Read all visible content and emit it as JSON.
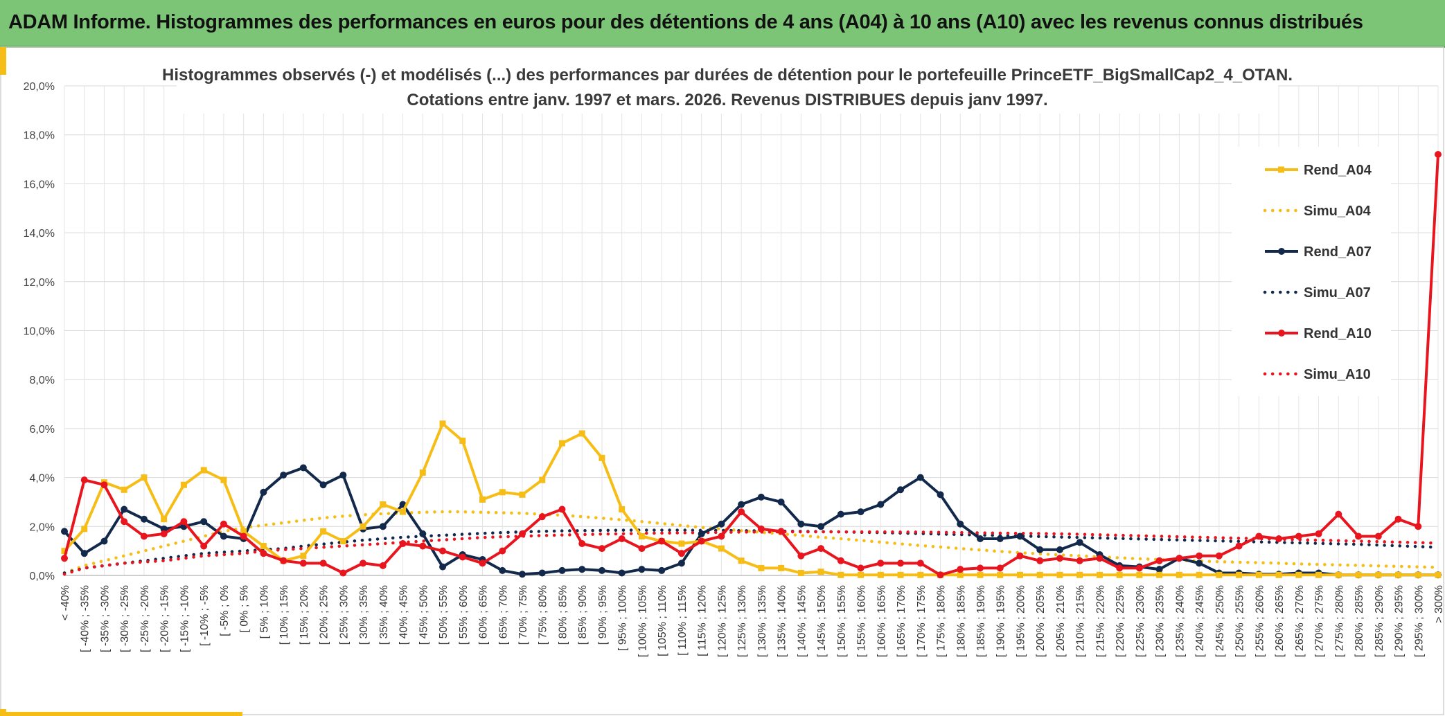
{
  "banner": {
    "title": "ADAM Informe. Histogrammes des performances en euros pour des détentions de 4 ans (A04) à 10 ans (A10) avec les revenus connus distribués"
  },
  "colors": {
    "A04": "#f6bd16",
    "A07": "#13294b",
    "A10": "#e8141e",
    "banner": "#7cc576",
    "accent_bar": "#f6bd16"
  },
  "chart_data": {
    "type": "line",
    "title_line1": "Histogrammes observés (-) et modélisés (...) des performances par durées de détention pour le portefeuille PrinceETF_BigSmallCap2_4_OTAN.",
    "title_line2": "Cotations entre janv. 1997 et mars. 2026. Revenus DISTRIBUES depuis janv 1997.",
    "ylim": [
      0,
      20
    ],
    "yticks": [
      "0,0%",
      "2,0%",
      "4,0%",
      "6,0%",
      "8,0%",
      "10,0%",
      "12,0%",
      "14,0%",
      "16,0%",
      "18,0%",
      "20,0%"
    ],
    "grid": true,
    "legend_position": "right",
    "categories": [
      "< -40%",
      "[ -40% ; -35%",
      "[ -35% ; -30%",
      "[ -30% ; -25%",
      "[ -25% ; -20%",
      "[ -20% ; -15%",
      "[ -15% ; -10%",
      "[ -10% ; -5%",
      "[ -5% ; 0%",
      "[ 0% ; 5%",
      "[ 5% ; 10%",
      "[ 10% ; 15%",
      "[ 15% ; 20%",
      "[ 20% ; 25%",
      "[ 25% ; 30%",
      "[ 30% ; 35%",
      "[ 35% ; 40%",
      "[ 40% ; 45%",
      "[ 45% ; 50%",
      "[ 50% ; 55%",
      "[ 55% ; 60%",
      "[ 60% ; 65%",
      "[ 65% ; 70%",
      "[ 70% ; 75%",
      "[ 75% ; 80%",
      "[ 80% ; 85%",
      "[ 85% ; 90%",
      "[ 90% ; 95%",
      "[ 95% ; 100%",
      "[ 100% ; 105%",
      "[ 105% ; 110%",
      "[ 110% ; 115%",
      "[ 115% ; 120%",
      "[ 120% ; 125%",
      "[ 125% ; 130%",
      "[ 130% ; 135%",
      "[ 135% ; 140%",
      "[ 140% ; 145%",
      "[ 145% ; 150%",
      "[ 150% ; 155%",
      "[ 155% ; 160%",
      "[ 160% ; 165%",
      "[ 165% ; 170%",
      "[ 170% ; 175%",
      "[ 175% ; 180%",
      "[ 180% ; 185%",
      "[ 185% ; 190%",
      "[ 190% ; 195%",
      "[ 195% ; 200%",
      "[ 200% ; 205%",
      "[ 205% ; 210%",
      "[ 210% ; 215%",
      "[ 215% ; 220%",
      "[ 220% ; 225%",
      "[ 225% ; 230%",
      "[ 230% ; 235%",
      "[ 235% ; 240%",
      "[ 240% ; 245%",
      "[ 245% ; 250%",
      "[ 250% ; 255%",
      "[ 255% ; 260%",
      "[ 260% ; 265%",
      "[ 265% ; 270%",
      "[ 270% ; 275%",
      "[ 275% ; 280%",
      "[ 280% ; 285%",
      "[ 285% ; 290%",
      "[ 290% ; 295%",
      "[ 295% ; 300%",
      "> 300%"
    ],
    "series": [
      {
        "name": "Rend_A04",
        "key": "A04",
        "style": "solid",
        "marker": "square",
        "values": [
          1.0,
          1.9,
          3.8,
          3.5,
          4.0,
          2.3,
          3.7,
          4.3,
          3.9,
          1.8,
          1.2,
          0.6,
          0.8,
          1.8,
          1.4,
          2.0,
          2.9,
          2.6,
          4.2,
          6.2,
          5.5,
          3.1,
          3.4,
          3.3,
          3.9,
          5.4,
          5.8,
          4.8,
          2.7,
          1.6,
          1.4,
          1.3,
          1.4,
          1.1,
          0.6,
          0.3,
          0.3,
          0.1,
          0.15,
          0.02,
          0.02,
          0.02,
          0.02,
          0.02,
          0.02,
          0.02,
          0.02,
          0.02,
          0.02,
          0.02,
          0.02,
          0.02,
          0.02,
          0.02,
          0.02,
          0.02,
          0.02,
          0.02,
          0.02,
          0.02,
          0.02,
          0.02,
          0.02,
          0.02,
          0.02,
          0.02,
          0.02,
          0.02,
          0.02,
          0.02
        ]
      },
      {
        "name": "Simu_A04",
        "key": "A04",
        "style": "dotted",
        "marker": "none",
        "values": [
          0.1,
          0.4,
          0.6,
          0.8,
          1.0,
          1.2,
          1.4,
          1.6,
          1.8,
          1.95,
          2.05,
          2.15,
          2.25,
          2.35,
          2.42,
          2.48,
          2.52,
          2.55,
          2.58,
          2.6,
          2.6,
          2.58,
          2.56,
          2.54,
          2.5,
          2.46,
          2.4,
          2.34,
          2.27,
          2.2,
          2.12,
          2.04,
          1.96,
          1.9,
          1.83,
          1.76,
          1.7,
          1.63,
          1.56,
          1.5,
          1.43,
          1.36,
          1.29,
          1.22,
          1.16,
          1.1,
          1.04,
          0.98,
          0.93,
          0.88,
          0.84,
          0.8,
          0.76,
          0.72,
          0.68,
          0.65,
          0.62,
          0.59,
          0.56,
          0.54,
          0.52,
          0.5,
          0.47,
          0.45,
          0.43,
          0.41,
          0.39,
          0.37,
          0.35,
          0.33
        ]
      },
      {
        "name": "Rend_A07",
        "key": "A07",
        "style": "solid",
        "marker": "circle",
        "values": [
          1.8,
          0.9,
          1.4,
          2.7,
          2.3,
          1.9,
          2.0,
          2.2,
          1.6,
          1.5,
          3.4,
          4.1,
          4.4,
          3.7,
          4.1,
          1.9,
          2.0,
          2.9,
          1.7,
          0.35,
          0.85,
          0.65,
          0.2,
          0.05,
          0.1,
          0.2,
          0.25,
          0.2,
          0.1,
          0.25,
          0.2,
          0.5,
          1.7,
          2.1,
          2.9,
          3.2,
          3.0,
          2.1,
          2.0,
          2.5,
          2.6,
          2.9,
          3.5,
          4.0,
          3.3,
          2.1,
          1.5,
          1.5,
          1.6,
          1.05,
          1.05,
          1.35,
          0.85,
          0.4,
          0.35,
          0.25,
          0.7,
          0.5,
          0.1,
          0.1,
          0.05,
          0.05,
          0.1,
          0.1,
          0.02,
          0.02,
          0.02,
          0.02,
          0.02,
          0.02
        ]
      },
      {
        "name": "Simu_A07",
        "key": "A07",
        "style": "dotted",
        "marker": "none",
        "values": [
          0.1,
          0.3,
          0.4,
          0.5,
          0.6,
          0.7,
          0.8,
          0.9,
          0.95,
          1.0,
          1.05,
          1.1,
          1.2,
          1.28,
          1.36,
          1.44,
          1.5,
          1.56,
          1.6,
          1.64,
          1.68,
          1.72,
          1.75,
          1.78,
          1.8,
          1.82,
          1.83,
          1.84,
          1.85,
          1.85,
          1.85,
          1.85,
          1.84,
          1.84,
          1.83,
          1.82,
          1.81,
          1.8,
          1.79,
          1.78,
          1.76,
          1.75,
          1.73,
          1.71,
          1.69,
          1.67,
          1.65,
          1.63,
          1.61,
          1.59,
          1.57,
          1.55,
          1.53,
          1.51,
          1.49,
          1.47,
          1.45,
          1.43,
          1.41,
          1.39,
          1.37,
          1.35,
          1.33,
          1.31,
          1.29,
          1.27,
          1.24,
          1.21,
          1.18,
          1.15
        ]
      },
      {
        "name": "Rend_A10",
        "key": "A10",
        "style": "solid",
        "marker": "circle",
        "values": [
          0.7,
          3.9,
          3.7,
          2.2,
          1.6,
          1.7,
          2.2,
          1.2,
          2.1,
          1.6,
          0.9,
          0.6,
          0.5,
          0.5,
          0.1,
          0.5,
          0.4,
          1.3,
          1.2,
          1.0,
          0.75,
          0.5,
          1.0,
          1.7,
          2.4,
          2.7,
          1.3,
          1.1,
          1.5,
          1.1,
          1.4,
          0.9,
          1.4,
          1.6,
          2.6,
          1.9,
          1.8,
          0.8,
          1.1,
          0.6,
          0.3,
          0.5,
          0.5,
          0.5,
          0.02,
          0.25,
          0.3,
          0.3,
          0.8,
          0.6,
          0.7,
          0.6,
          0.7,
          0.3,
          0.3,
          0.6,
          0.7,
          0.8,
          0.8,
          1.2,
          1.6,
          1.5,
          1.6,
          1.7,
          2.5,
          1.6,
          1.6,
          2.3,
          2.0,
          17.2
        ]
      },
      {
        "name": "Simu_A10",
        "key": "A10",
        "style": "dotted",
        "marker": "none",
        "values": [
          0.05,
          0.3,
          0.4,
          0.5,
          0.55,
          0.6,
          0.7,
          0.8,
          0.85,
          0.9,
          1.0,
          1.05,
          1.1,
          1.15,
          1.2,
          1.25,
          1.3,
          1.35,
          1.4,
          1.45,
          1.5,
          1.55,
          1.58,
          1.6,
          1.63,
          1.65,
          1.67,
          1.69,
          1.7,
          1.72,
          1.73,
          1.74,
          1.75,
          1.76,
          1.77,
          1.77,
          1.78,
          1.78,
          1.78,
          1.78,
          1.78,
          1.78,
          1.77,
          1.77,
          1.76,
          1.75,
          1.74,
          1.73,
          1.72,
          1.71,
          1.7,
          1.68,
          1.66,
          1.64,
          1.62,
          1.6,
          1.58,
          1.56,
          1.54,
          1.52,
          1.5,
          1.48,
          1.46,
          1.44,
          1.42,
          1.4,
          1.38,
          1.36,
          1.34,
          1.32
        ]
      }
    ]
  }
}
